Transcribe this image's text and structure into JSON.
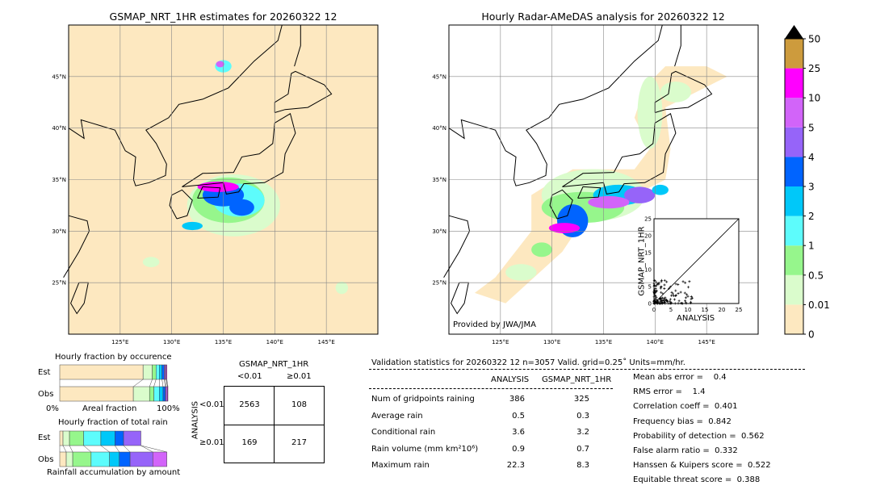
{
  "left_map": {
    "title": "GSMAP_NRT_1HR estimates for 20260322 12"
  },
  "right_map": {
    "title": "Hourly Radar-AMeDAS analysis for 20260322 12",
    "credit": "Provided by JWA/JMA"
  },
  "map_axes": {
    "lon_ticks": [
      "125°E",
      "130°E",
      "135°E",
      "140°E",
      "145°E"
    ],
    "lat_ticks": [
      "45°N",
      "40°N",
      "35°N",
      "30°N",
      "25°N"
    ],
    "lon_range": [
      120,
      150
    ],
    "lat_range": [
      20,
      50
    ]
  },
  "colorbar": {
    "levels": [
      "0",
      "0.01",
      "0.5",
      "1",
      "2",
      "3",
      "4",
      "5",
      "10",
      "25",
      "50"
    ],
    "colors": [
      "#fde8c0",
      "#dafccc",
      "#96f68c",
      "#5dfcfc",
      "#00c8f9",
      "#0064ff",
      "#9664f9",
      "#d264f9",
      "#ff00ff",
      "#cd9b3d"
    ],
    "extend_color": "#000000"
  },
  "scatter": {
    "xlabel": "ANALYSIS",
    "ylabel": "GSMAP_NRT_1HR",
    "ticks": [
      "0",
      "5",
      "10",
      "15",
      "20",
      "25"
    ]
  },
  "occurrence": {
    "title": "Hourly fraction by occurence",
    "est_label": "Est",
    "obs_label": "Obs",
    "xlabel": "Areal fraction",
    "left_tick": "0%",
    "right_tick": "100%"
  },
  "rain_fraction": {
    "title": "Hourly fraction of total rain",
    "est_label": "Est",
    "obs_label": "Obs",
    "xlabel": "Rainfall accumulation by amount"
  },
  "contingency": {
    "title": "GSMAP_NRT_1HR",
    "col_headers": [
      "<0.01",
      "≥0.01"
    ],
    "row_axis": "ANALYSIS",
    "row_headers": [
      "<0.01",
      "≥0.01"
    ],
    "cells": [
      [
        "2563",
        "108"
      ],
      [
        "169",
        "217"
      ]
    ]
  },
  "stats": {
    "header": "Validation statistics for 20260322 12  n=3057 Valid. grid=0.25˚ Units=mm/hr.",
    "col_analysis": "ANALYSIS",
    "col_gsmap": "GSMAP_NRT_1HR",
    "rows": [
      {
        "label": "Num of gridpoints raining",
        "analysis": "386",
        "gsmap": "325"
      },
      {
        "label": "Average rain",
        "analysis": "0.5",
        "gsmap": "0.3"
      },
      {
        "label": "Conditional rain",
        "analysis": "3.6",
        "gsmap": "3.2"
      },
      {
        "label": "Rain volume (mm km²10⁶)",
        "analysis": "0.9",
        "gsmap": "0.7"
      },
      {
        "label": "Maximum rain",
        "analysis": "22.3",
        "gsmap": "8.3"
      }
    ],
    "scores": [
      "Mean abs error =    0.4",
      "RMS error =    1.4",
      "Correlation coeff =  0.401",
      "Frequency bias =  0.842",
      "Probability of detection =  0.562",
      "False alarm ratio =  0.332",
      "Hanssen & Kuipers score =  0.522",
      "Equitable threat score =  0.388"
    ]
  },
  "chart_data": [
    {
      "type": "bar",
      "title": "Hourly fraction by occurence",
      "categories": [
        "Est",
        "Obs"
      ],
      "series": [
        {
          "values": [
            0.77,
            0.68
          ]
        },
        {
          "values": [
            0.085,
            0.15
          ]
        },
        {
          "values": [
            0.035,
            0.04
          ]
        },
        {
          "values": [
            0.03,
            0.05
          ]
        },
        {
          "values": [
            0.025,
            0.035
          ]
        },
        {
          "values": [
            0.02,
            0.02
          ]
        },
        {
          "values": [
            0.01,
            0.01
          ]
        },
        {
          "values": [
            0.01,
            0.01
          ]
        },
        {
          "values": [
            0.005,
            0.005
          ]
        }
      ]
    },
    {
      "type": "bar",
      "title": "Hourly fraction of total rain",
      "categories": [
        "Est",
        "Obs"
      ],
      "series": [
        {
          "values": [
            0.03,
            0.06
          ]
        },
        {
          "values": [
            0.06,
            0.06
          ]
        },
        {
          "values": [
            0.13,
            0.17
          ]
        },
        {
          "values": [
            0.16,
            0.17
          ]
        },
        {
          "values": [
            0.13,
            0.09
          ]
        },
        {
          "values": [
            0.08,
            0.1
          ]
        },
        {
          "values": [
            0.16,
            0.21
          ]
        },
        {
          "values": [
            0,
            0.13
          ]
        }
      ]
    },
    {
      "type": "table",
      "title": "GSMAP_NRT_1HR",
      "rows": [
        "<0.01",
        "≥0.01"
      ],
      "columns": [
        "<0.01",
        "≥0.01"
      ],
      "values": [
        [
          2563,
          108
        ],
        [
          169,
          217
        ]
      ]
    }
  ]
}
